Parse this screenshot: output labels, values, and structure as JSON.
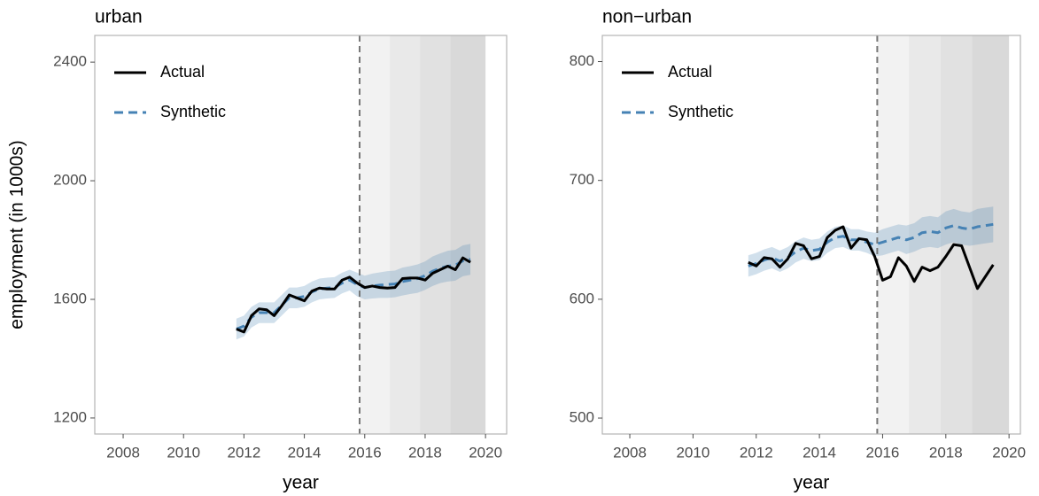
{
  "chart_data": [
    {
      "type": "line",
      "title": "urban",
      "x_label": "year",
      "y_label": "employment (in 1000s)",
      "x": [
        2011.75,
        2012,
        2012.25,
        2012.5,
        2012.75,
        2013,
        2013.25,
        2013.5,
        2013.75,
        2014,
        2014.25,
        2014.5,
        2014.75,
        2015,
        2015.25,
        2015.5,
        2015.75,
        2016,
        2016.25,
        2016.5,
        2016.75,
        2017,
        2017.25,
        2017.5,
        2017.75,
        2018,
        2018.25,
        2018.5,
        2018.75,
        2019,
        2019.25,
        2019.5
      ],
      "series": [
        {
          "name": "Actual",
          "color": "#000000",
          "values": [
            1500,
            1490,
            1545,
            1568,
            1565,
            1545,
            1578,
            1615,
            1605,
            1595,
            1628,
            1638,
            1635,
            1635,
            1665,
            1675,
            1655,
            1640,
            1645,
            1640,
            1638,
            1640,
            1670,
            1672,
            1672,
            1665,
            1688,
            1700,
            1712,
            1700,
            1740,
            1725
          ]
        },
        {
          "name": "Synthetic",
          "color": "#4682b4",
          "dashed": true,
          "values": [
            1500,
            1510,
            1540,
            1555,
            1555,
            1555,
            1580,
            1605,
            1605,
            1610,
            1625,
            1635,
            1638,
            1640,
            1655,
            1665,
            1650,
            1640,
            1645,
            1648,
            1650,
            1652,
            1660,
            1665,
            1670,
            1680,
            1695,
            1705,
            1712,
            1715,
            1730,
            1735
          ]
        }
      ],
      "band": {
        "color": "#4682b4",
        "lower": [
          1465,
          1475,
          1505,
          1520,
          1520,
          1520,
          1545,
          1570,
          1570,
          1575,
          1590,
          1600,
          1603,
          1605,
          1620,
          1630,
          1610,
          1600,
          1603,
          1605,
          1605,
          1607,
          1613,
          1618,
          1622,
          1632,
          1645,
          1655,
          1660,
          1663,
          1678,
          1683
        ],
        "upper": [
          1535,
          1545,
          1575,
          1590,
          1590,
          1590,
          1615,
          1640,
          1640,
          1645,
          1660,
          1670,
          1673,
          1675,
          1690,
          1700,
          1690,
          1680,
          1687,
          1691,
          1695,
          1697,
          1707,
          1712,
          1718,
          1728,
          1745,
          1755,
          1764,
          1767,
          1782,
          1787
        ]
      },
      "treatment_x": 2015.83,
      "shade_breaks": [
        2015.83,
        2016.83,
        2017.83,
        2018.83,
        2020
      ],
      "shade_colors": [
        "#f2f2f2",
        "#e9e9e9",
        "#e1e1e1",
        "#d9d9d9"
      ],
      "xlim": [
        2007.06,
        2020.7
      ],
      "xticks": [
        2008,
        2010,
        2012,
        2014,
        2016,
        2018,
        2020
      ],
      "ylim": [
        1146,
        2490
      ],
      "yticks": [
        1200,
        1600,
        2000,
        2400
      ],
      "legend": "top-left"
    },
    {
      "type": "line",
      "title": "non−urban",
      "x_label": "year",
      "x": [
        2011.75,
        2012,
        2012.25,
        2012.5,
        2012.75,
        2013,
        2013.25,
        2013.5,
        2013.75,
        2014,
        2014.25,
        2014.5,
        2014.75,
        2015,
        2015.25,
        2015.5,
        2015.75,
        2016,
        2016.25,
        2016.5,
        2016.75,
        2017,
        2017.25,
        2017.5,
        2017.75,
        2018,
        2018.25,
        2018.5,
        2018.75,
        2019,
        2019.25,
        2019.5
      ],
      "series": [
        {
          "name": "Actual",
          "color": "#000000",
          "values": [
            631,
            628,
            635,
            634,
            627,
            634,
            647,
            645,
            634,
            636,
            652,
            658,
            661,
            643,
            651,
            650,
            636,
            616,
            619,
            635,
            628,
            615,
            627,
            624,
            627,
            636,
            646,
            645,
            627,
            609,
            619,
            629
          ]
        },
        {
          "name": "Synthetic",
          "color": "#4682b4",
          "dashed": true,
          "values": [
            628,
            630,
            633,
            635,
            632,
            635,
            640,
            643,
            641,
            642,
            648,
            652,
            653,
            650,
            650,
            648,
            646,
            648,
            650,
            652,
            650,
            652,
            656,
            657,
            656,
            660,
            662,
            660,
            659,
            661,
            662,
            663
          ]
        }
      ],
      "band": {
        "color": "#4682b4",
        "lower": [
          619,
          621,
          624,
          626,
          623,
          626,
          631,
          634,
          632,
          633,
          639,
          643,
          644,
          641,
          641,
          639,
          636,
          637,
          639,
          641,
          638,
          640,
          643,
          644,
          643,
          646,
          648,
          646,
          645,
          646,
          647,
          648
        ],
        "upper": [
          637,
          639,
          642,
          644,
          641,
          644,
          649,
          652,
          650,
          651,
          657,
          661,
          662,
          659,
          659,
          657,
          656,
          659,
          661,
          663,
          662,
          664,
          669,
          670,
          669,
          674,
          676,
          674,
          673,
          676,
          677,
          678
        ]
      },
      "treatment_x": 2015.83,
      "shade_breaks": [
        2015.83,
        2016.83,
        2017.83,
        2018.83,
        2020
      ],
      "shade_colors": [
        "#f2f2f2",
        "#e9e9e9",
        "#e1e1e1",
        "#d9d9d9"
      ],
      "xlim": [
        2007.13,
        2020.36
      ],
      "xticks": [
        2008,
        2010,
        2012,
        2014,
        2016,
        2018,
        2020
      ],
      "ylim": [
        486.6,
        822
      ],
      "yticks": [
        500,
        600,
        700,
        800
      ],
      "legend": "top-left"
    }
  ]
}
